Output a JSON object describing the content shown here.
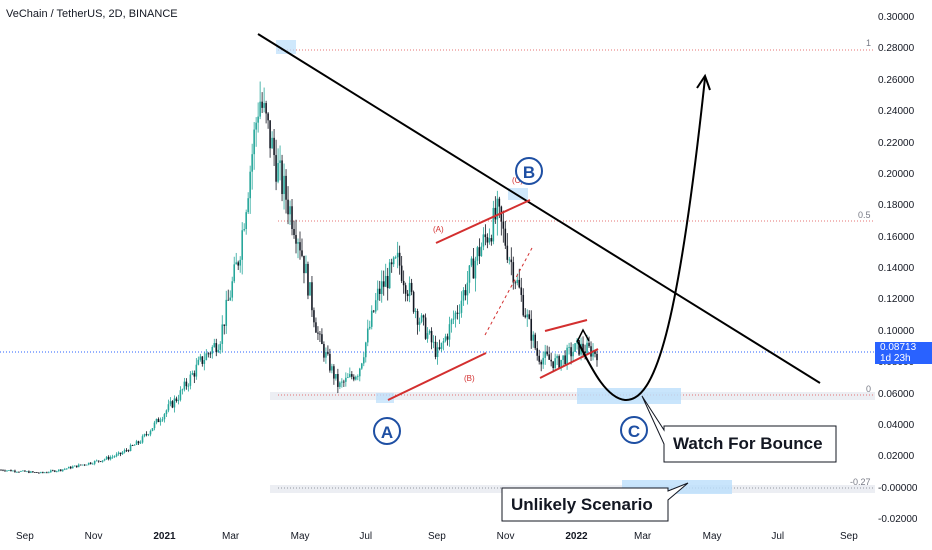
{
  "header": {
    "title": "VeChain / TetherUS, 2D, BINANCE"
  },
  "price_label": {
    "value": "0.08713",
    "countdown": "1d 23h"
  },
  "fib_labels": [
    "1",
    "0.5",
    "0",
    "-0.27"
  ],
  "wave_labels": [
    "(A)",
    "(B)",
    "(C)"
  ],
  "wave_circles": [
    "A",
    "B",
    "C"
  ],
  "callouts": [
    "Watch For Bounce",
    "Unlikely Scenario"
  ],
  "colors": {
    "bull": "#26a69a",
    "bear": "#131722",
    "trend": "#000000",
    "channel": "#d32f2f",
    "fib_line": "#e57373",
    "circle": "#1e4fa3",
    "highlight": "#bbdefb",
    "price_line": "#2962ff"
  },
  "chart_data": {
    "type": "candlestick",
    "title": "VeChain / TetherUS, 2D, BINANCE",
    "x_ticks": [
      "Sep",
      "Nov",
      "2021",
      "Mar",
      "May",
      "Jul",
      "Sep",
      "Nov",
      "2022",
      "Mar",
      "May",
      "Jul",
      "Sep"
    ],
    "y_ticks": [
      "0.30000",
      "0.28000",
      "0.26000",
      "0.24000",
      "0.22000",
      "0.20000",
      "0.18000",
      "0.16000",
      "0.14000",
      "0.12000",
      "0.10000",
      "0.08000",
      "0.06000",
      "0.04000",
      "0.02000",
      "-0.00000",
      "-0.02000"
    ],
    "ylim": [
      -0.02,
      0.3
    ],
    "current_price": 0.08713,
    "fib_levels": [
      {
        "label": "1",
        "value": 0.279
      },
      {
        "label": "0.5",
        "value": 0.17
      },
      {
        "label": "0",
        "value": 0.0595
      },
      {
        "label": "-0.27",
        "value": 0.0005
      }
    ],
    "series": [
      {
        "values": [
          0.012,
          0.011,
          0.01,
          0.012,
          0.015,
          0.018,
          0.022,
          0.03,
          0.045,
          0.06,
          0.08,
          0.095,
          0.15,
          0.25,
          0.2,
          0.16,
          0.095,
          0.065,
          0.075,
          0.125,
          0.145,
          0.11,
          0.085,
          0.115,
          0.15,
          0.175,
          0.13,
          0.085,
          0.08,
          0.09,
          0.087
        ]
      }
    ]
  }
}
